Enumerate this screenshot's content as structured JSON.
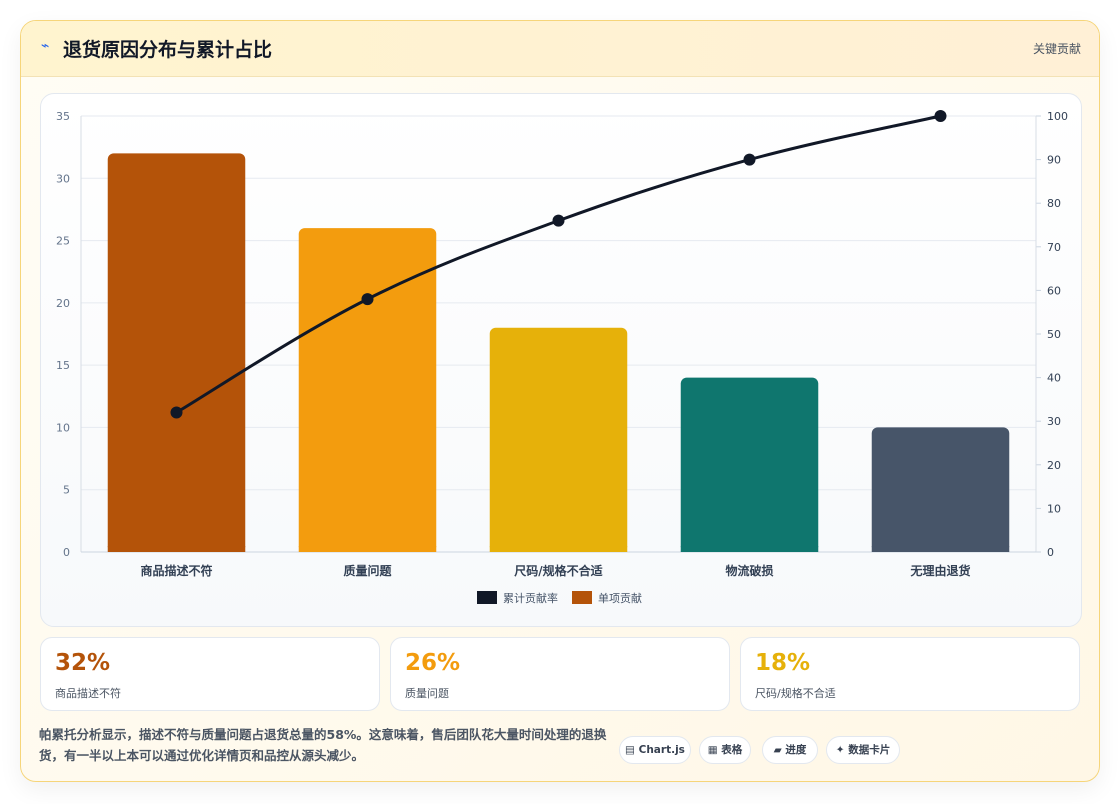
{
  "header": {
    "icon": "chart-line-icon",
    "title": "退货原因分布与累计占比",
    "right_label": "关键贡献"
  },
  "chart_data": {
    "type": "bar",
    "categories": [
      "商品描述不符",
      "质量问题",
      "尺码/规格不合适",
      "物流破损",
      "无理由退货"
    ],
    "series": [
      {
        "name": "单项贡献",
        "type": "bar",
        "values": [
          32,
          26,
          18,
          14,
          10
        ],
        "colors": [
          "#b45309",
          "#f39c0e",
          "#e6b10a",
          "#0f766e",
          "#475569"
        ]
      },
      {
        "name": "累计贡献率",
        "type": "line",
        "values": [
          32,
          58,
          76,
          90,
          100
        ],
        "color": "#111827"
      }
    ],
    "ylim_left": [
      0,
      35
    ],
    "yticks_left": [
      0,
      5,
      10,
      15,
      20,
      25,
      30,
      35
    ],
    "ylim_right": [
      0,
      100
    ],
    "yticks_right": [
      0,
      10,
      20,
      30,
      40,
      50,
      60,
      70,
      80,
      90,
      100
    ],
    "legend": [
      {
        "label": "累计贡献率",
        "color": "#111827"
      },
      {
        "label": "单项贡献",
        "color": "#b45309"
      }
    ],
    "legend_position": "bottom",
    "grid": true
  },
  "stats": [
    {
      "value": "32%",
      "label": "商品描述不符",
      "color": "#b45309"
    },
    {
      "value": "26%",
      "label": "质量问题",
      "color": "#f39c0e"
    },
    {
      "value": "18%",
      "label": "尺码/规格不合适",
      "color": "#e6b10a"
    }
  ],
  "footnote": "帕累托分析显示，描述不符与质量问题占退货总量的58%。这意味着，售后团队花大量时间处理的退换货，有一半以上本可以通过优化详情页和品控从源头减少。",
  "pills": [
    {
      "icon": "table-icon",
      "glyph": "▤",
      "label": "Chart.js"
    },
    {
      "icon": "table-icon",
      "glyph": "▦",
      "label": "表格"
    },
    {
      "icon": "progress-icon",
      "glyph": "▰",
      "label": "进度"
    },
    {
      "icon": "sparkle-icon",
      "glyph": "✦",
      "label": "数据卡片"
    }
  ]
}
